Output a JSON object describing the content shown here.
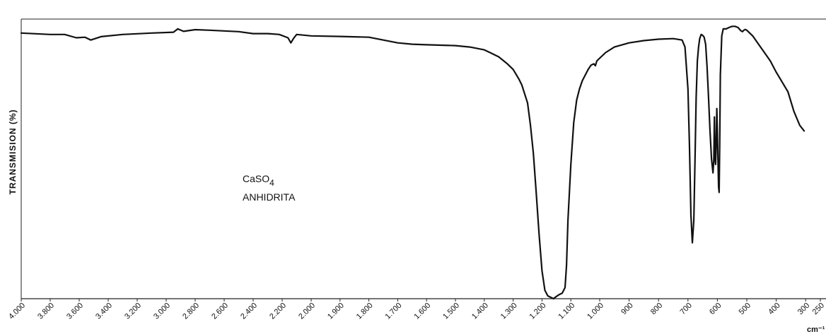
{
  "chart_data": {
    "type": "line",
    "title": "",
    "ylabel": "TRANSMISION (%)",
    "xunit": "cm⁻¹",
    "xlim": [
      4000,
      250
    ],
    "ylim": [
      0,
      100
    ],
    "grid": false,
    "annotations": [
      {
        "lines": [
          {
            "main": "CaSO",
            "sub": "4"
          },
          {
            "main": "ANHIDRITA"
          }
        ]
      }
    ],
    "x_ticks": [
      {
        "value": 4000,
        "label": "4.000"
      },
      {
        "value": 3800,
        "label": "3.800"
      },
      {
        "value": 3600,
        "label": "3.600"
      },
      {
        "value": 3400,
        "label": "3.400"
      },
      {
        "value": 3200,
        "label": "3.200"
      },
      {
        "value": 3000,
        "label": "3.000"
      },
      {
        "value": 2800,
        "label": "2.800"
      },
      {
        "value": 2600,
        "label": "2.600"
      },
      {
        "value": 2400,
        "label": "2.400"
      },
      {
        "value": 2200,
        "label": "2.200"
      },
      {
        "value": 2000,
        "label": "2.000"
      },
      {
        "value": 1900,
        "label": "1.900"
      },
      {
        "value": 1800,
        "label": "1.800"
      },
      {
        "value": 1700,
        "label": "1.700"
      },
      {
        "value": 1600,
        "label": "1.600"
      },
      {
        "value": 1500,
        "label": "1.500"
      },
      {
        "value": 1400,
        "label": "1.400"
      },
      {
        "value": 1300,
        "label": "1.300"
      },
      {
        "value": 1200,
        "label": "1.200"
      },
      {
        "value": 1100,
        "label": "1.100"
      },
      {
        "value": 1000,
        "label": "1.000"
      },
      {
        "value": 900,
        "label": "900"
      },
      {
        "value": 800,
        "label": "800"
      },
      {
        "value": 700,
        "label": "700"
      },
      {
        "value": 600,
        "label": "600"
      },
      {
        "value": 500,
        "label": "500"
      },
      {
        "value": 400,
        "label": "400"
      },
      {
        "value": 300,
        "label": "300"
      },
      {
        "value": 250,
        "label": "250"
      }
    ],
    "series": [
      {
        "x": [
          4000,
          3800,
          3700,
          3620,
          3560,
          3520,
          3450,
          3300,
          3100,
          2950,
          2920,
          2880,
          2800,
          2700,
          2500,
          2400,
          2300,
          2220,
          2160,
          2140,
          2120,
          2100,
          2000,
          1900,
          1800,
          1750,
          1700,
          1650,
          1600,
          1500,
          1450,
          1400,
          1380,
          1350,
          1320,
          1300,
          1280,
          1270,
          1250,
          1240,
          1230,
          1220,
          1210,
          1200,
          1190,
          1180,
          1170,
          1160,
          1150,
          1140,
          1130,
          1120,
          1115,
          1110,
          1100,
          1090,
          1080,
          1070,
          1060,
          1050,
          1040,
          1030,
          1020,
          1015,
          1010,
          1000,
          980,
          950,
          900,
          850,
          800,
          750,
          720,
          710,
          700,
          695,
          690,
          685,
          680,
          676,
          672,
          668,
          664,
          660,
          655,
          650,
          645,
          640,
          635,
          630,
          625,
          620,
          615,
          612,
          610,
          608,
          606,
          604,
          602,
          600,
          598,
          596,
          594,
          592,
          590,
          585,
          580,
          570,
          560,
          550,
          540,
          530,
          520,
          515,
          510,
          505,
          500,
          480,
          460,
          440,
          420,
          400,
          380,
          360,
          340,
          320,
          305
        ],
        "y": [
          95,
          94.5,
          94.5,
          93.3,
          93.5,
          92.5,
          93.7,
          94.5,
          95,
          95.3,
          96.5,
          95.6,
          96.2,
          96,
          95.5,
          94.8,
          94.8,
          94.5,
          93.3,
          91.5,
          93.2,
          94.5,
          94,
          93.8,
          93.5,
          92.5,
          91.5,
          91,
          90.8,
          90.5,
          90,
          89,
          88,
          86.5,
          84,
          82,
          78.5,
          76.5,
          70,
          62,
          52,
          38,
          23,
          10,
          3,
          1,
          0.5,
          0,
          0.8,
          1.5,
          2,
          4,
          12,
          28,
          48,
          63,
          71,
          75,
          78,
          80,
          82,
          83.5,
          84,
          83.3,
          85,
          86,
          88,
          90,
          91.5,
          92.3,
          92.8,
          93,
          92.5,
          90,
          75,
          55,
          30,
          20,
          28,
          50,
          72,
          85,
          90,
          93,
          94.5,
          94.2,
          93.5,
          91,
          83,
          72,
          60,
          50,
          45,
          50,
          65,
          50,
          48,
          55,
          68,
          60,
          50,
          40,
          38,
          55,
          80,
          94,
          96.5,
          96.5,
          97,
          97.4,
          97.4,
          97,
          95.8,
          95.5,
          96,
          96.3,
          96,
          94,
          91,
          88,
          85,
          81,
          77.5,
          74,
          67,
          62,
          60
        ]
      }
    ]
  }
}
